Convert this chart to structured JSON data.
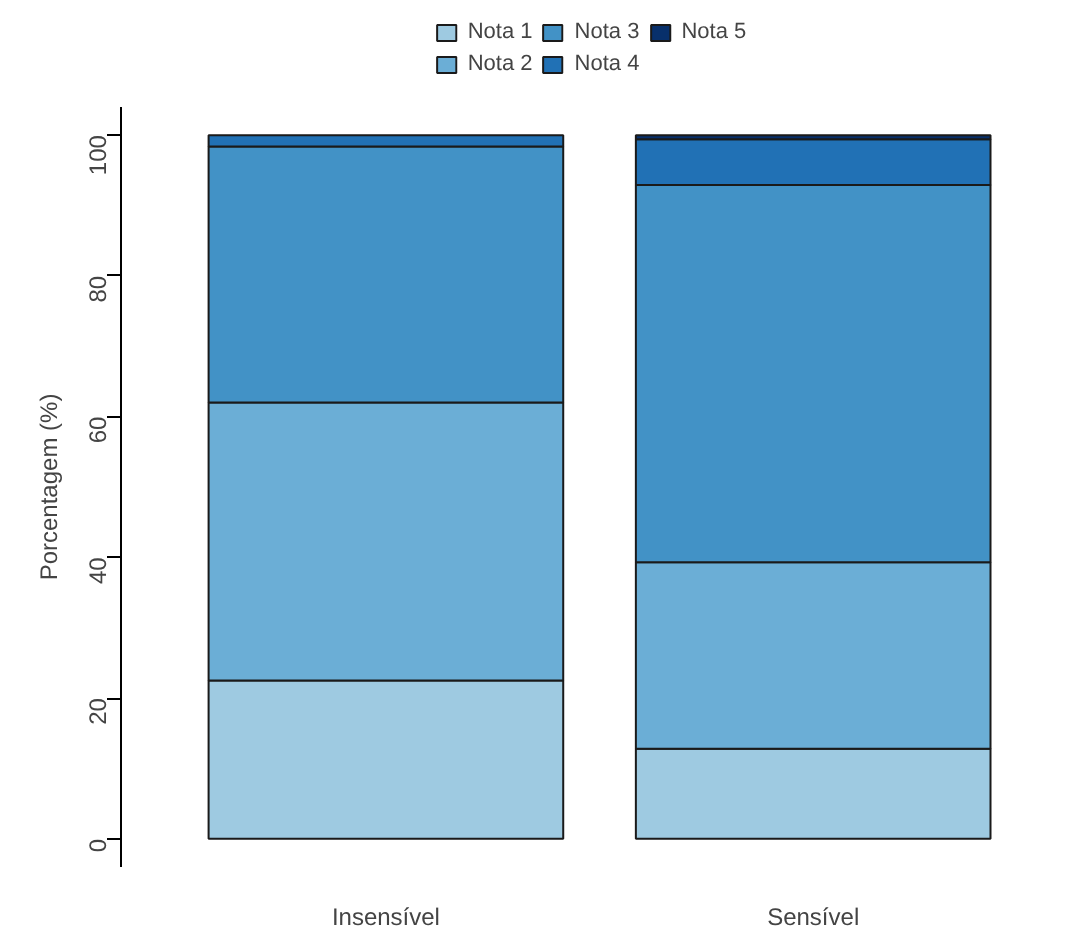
{
  "chart_data": {
    "type": "bar",
    "stacked": true,
    "ylabel": "Porcentagem (%)",
    "categories": [
      "Insensível",
      "Sensível"
    ],
    "ylim": [
      -4,
      104
    ],
    "yticks": [
      0,
      20,
      40,
      60,
      80,
      100
    ],
    "grid": false,
    "legend": "top",
    "series": [
      {
        "name": "Nota 1",
        "color": "#9ecae1",
        "values": [
          22.5,
          12.8
        ]
      },
      {
        "name": "Nota 2",
        "color": "#6baed6",
        "values": [
          39.5,
          26.5
        ]
      },
      {
        "name": "Nota 3",
        "color": "#4292c6",
        "values": [
          36.4,
          53.6
        ]
      },
      {
        "name": "Nota 4",
        "color": "#2171b5",
        "values": [
          1.6,
          6.5
        ]
      },
      {
        "name": "Nota 5",
        "color": "#08306b",
        "values": [
          null,
          0.6
        ]
      }
    ]
  }
}
